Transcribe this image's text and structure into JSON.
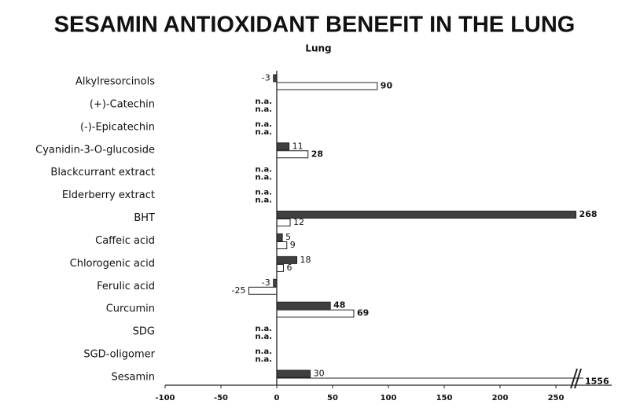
{
  "chart_data": {
    "type": "hbar",
    "title": "SESAMIN  ANTIOXIDANT  BENEFIT IN THE LUNG",
    "subtitle": "Lung",
    "categories": [
      "Alkylresorcinols",
      "(+)-Catechin",
      "(-)-Epicatechin",
      "Cyanidin-3-O-glucoside",
      "Blackcurrant extract",
      "Elderberry extract",
      "BHT",
      "Caffeic acid",
      "Chlorogenic acid",
      "Ferulic acid",
      "Curcumin",
      "SDG",
      "SGD-oligomer",
      "Sesamin"
    ],
    "series": [
      {
        "color": "#404040",
        "values": [
          -3,
          null,
          null,
          11,
          null,
          null,
          268,
          5,
          18,
          -3,
          48,
          null,
          null,
          30
        ],
        "value_labels": [
          "-3",
          "n.a.",
          "n.a.",
          "11",
          "n.a.",
          "n.a.",
          "268",
          "5",
          "18",
          "-3",
          "48",
          "n.a.",
          "n.a.",
          "30"
        ]
      },
      {
        "color": "#ffffff",
        "values": [
          90,
          null,
          null,
          28,
          null,
          null,
          12,
          9,
          6,
          -25,
          69,
          null,
          null,
          1556
        ],
        "value_labels": [
          "90",
          "n.a.",
          "n.a.",
          "28",
          "n.a.",
          "n.a.",
          "12",
          "9",
          "6",
          "-25",
          "69",
          "n.a.",
          "n.a.",
          "1556"
        ]
      }
    ],
    "xlim": [
      -100,
      300
    ],
    "xticks": [
      -100,
      -50,
      0,
      50,
      100,
      150,
      200,
      250
    ],
    "axis_break": true
  }
}
